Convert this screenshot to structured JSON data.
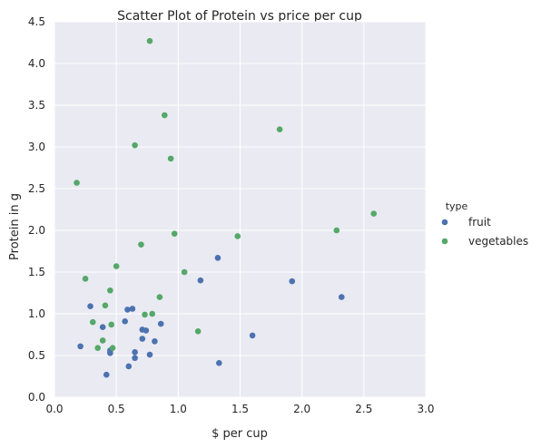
{
  "chart_data": {
    "type": "scatter",
    "title": "Scatter Plot of Protein vs price per cup",
    "xlabel": "$ per cup",
    "ylabel": "Protein in g",
    "xlim": [
      0.0,
      3.0
    ],
    "ylim": [
      0.0,
      4.5
    ],
    "xticks": [
      "0.0",
      "0.5",
      "1.0",
      "1.5",
      "2.0",
      "2.5",
      "3.0"
    ],
    "yticks": [
      "0.0",
      "0.5",
      "1.0",
      "1.5",
      "2.0",
      "2.5",
      "3.0",
      "3.5",
      "4.0",
      "4.5"
    ],
    "grid": true,
    "background": "#eaeaf2",
    "legend": {
      "title": "type",
      "placement": "right"
    },
    "series": [
      {
        "name": "fruit",
        "color": "#4c72b0",
        "points": [
          [
            0.21,
            0.61
          ],
          [
            0.29,
            1.09
          ],
          [
            0.39,
            0.84
          ],
          [
            0.42,
            0.27
          ],
          [
            0.45,
            0.53
          ],
          [
            0.45,
            0.56
          ],
          [
            0.57,
            0.91
          ],
          [
            0.59,
            1.05
          ],
          [
            0.6,
            0.37
          ],
          [
            0.63,
            1.06
          ],
          [
            0.65,
            0.54
          ],
          [
            0.65,
            0.47
          ],
          [
            0.71,
            0.81
          ],
          [
            0.71,
            0.7
          ],
          [
            0.74,
            0.8
          ],
          [
            0.77,
            0.51
          ],
          [
            0.81,
            0.67
          ],
          [
            0.86,
            0.88
          ],
          [
            1.18,
            1.4
          ],
          [
            1.32,
            1.67
          ],
          [
            1.33,
            0.41
          ],
          [
            1.6,
            0.74
          ],
          [
            1.92,
            1.39
          ],
          [
            2.32,
            1.2
          ]
        ]
      },
      {
        "name": "vegetables",
        "color": "#55a868",
        "points": [
          [
            0.18,
            2.57
          ],
          [
            0.25,
            1.42
          ],
          [
            0.31,
            0.9
          ],
          [
            0.35,
            0.59
          ],
          [
            0.39,
            0.68
          ],
          [
            0.41,
            1.1
          ],
          [
            0.45,
            1.28
          ],
          [
            0.46,
            0.87
          ],
          [
            0.47,
            0.59
          ],
          [
            0.5,
            1.57
          ],
          [
            0.65,
            3.02
          ],
          [
            0.7,
            1.83
          ],
          [
            0.73,
            0.99
          ],
          [
            0.77,
            4.27
          ],
          [
            0.79,
            1.0
          ],
          [
            0.85,
            1.2
          ],
          [
            0.89,
            3.38
          ],
          [
            0.94,
            2.86
          ],
          [
            0.97,
            1.96
          ],
          [
            1.05,
            1.5
          ],
          [
            1.16,
            0.79
          ],
          [
            1.48,
            1.93
          ],
          [
            1.82,
            3.21
          ],
          [
            2.28,
            2.0
          ],
          [
            2.58,
            2.2
          ]
        ]
      }
    ]
  }
}
